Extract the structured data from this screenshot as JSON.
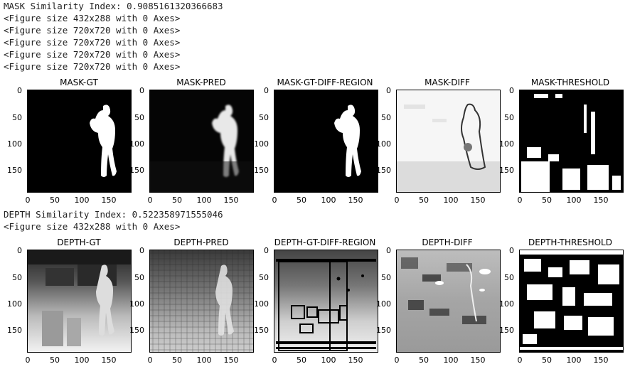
{
  "output": {
    "top_cut_line": "…",
    "mask_similarity": "MASK Similarity Index: 0.9085161320366683",
    "mask_figure_lines": [
      "<Figure size 432x288 with 0 Axes>",
      "<Figure size 720x720 with 0 Axes>",
      "<Figure size 720x720 with 0 Axes>",
      "<Figure size 720x720 with 0 Axes>",
      "<Figure size 720x720 with 0 Axes>"
    ],
    "depth_similarity": "DEPTH Similarity Index: 0.522358971555046",
    "depth_figure_line": "<Figure size 432x288 with 0 Axes>"
  },
  "axis": {
    "y_ticks": [
      "0",
      "50",
      "100",
      "150"
    ],
    "x_ticks": [
      "0",
      "50",
      "100",
      "150"
    ]
  },
  "mask_row": {
    "titles": [
      "MASK-GT",
      "MASK-PRED",
      "MASK-GT-DIFF-REGION",
      "MASK-DIFF",
      "MASK-THRESHOLD"
    ]
  },
  "depth_row": {
    "titles": [
      "DEPTH-GT",
      "DEPTH-PRED",
      "DEPTH-GT-DIFF-REGION",
      "DEPTH-DIFF",
      "DEPTH-THRESHOLD"
    ]
  },
  "colors": {
    "black": "#000000",
    "white": "#ffffff"
  }
}
